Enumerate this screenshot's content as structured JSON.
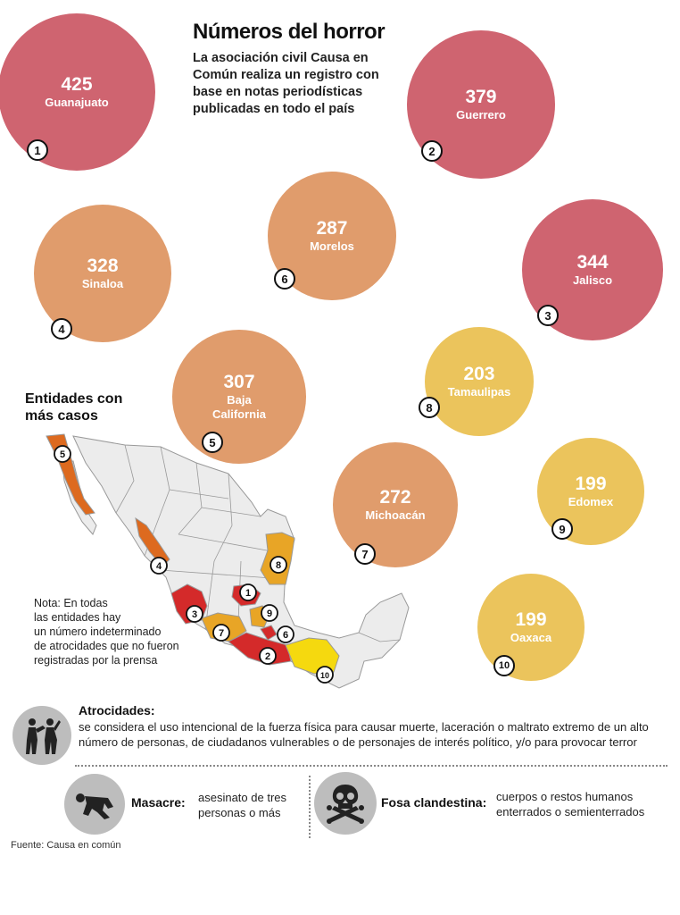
{
  "header": {
    "title": "Números del horror",
    "subtitle": "La asociación civil  Causa en Común realiza un registro con base en notas periodísticas publicadas en  todo el país"
  },
  "chart_data": {
    "type": "bubble",
    "title": "Números del horror",
    "colors": {
      "tier_high": "#cf6470",
      "tier_mid": "#e09c6c",
      "tier_low": "#ebc45c"
    },
    "series": [
      {
        "rank": "1",
        "state": "Guanajuato",
        "value": 425,
        "tier": "tier_high"
      },
      {
        "rank": "2",
        "state": "Guerrero",
        "value": 379,
        "tier": "tier_high"
      },
      {
        "rank": "3",
        "state": "Jalisco",
        "value": 344,
        "tier": "tier_high"
      },
      {
        "rank": "4",
        "state": "Sinaloa",
        "value": 328,
        "tier": "tier_mid"
      },
      {
        "rank": "5",
        "state": "Baja\nCalifornia",
        "value": 307,
        "tier": "tier_mid"
      },
      {
        "rank": "6",
        "state": "Morelos",
        "value": 287,
        "tier": "tier_mid"
      },
      {
        "rank": "7",
        "state": "Michoacán",
        "value": 272,
        "tier": "tier_mid"
      },
      {
        "rank": "8",
        "state": "Tamaulipas",
        "value": 203,
        "tier": "tier_low"
      },
      {
        "rank": "9",
        "state": "Edomex",
        "value": 199,
        "tier": "tier_low"
      },
      {
        "rank": "10",
        "state": "Oaxaca",
        "value": 199,
        "tier": "tier_low"
      }
    ]
  },
  "map": {
    "title": "Entidades con\nmás casos",
    "colors": {
      "base": "#ececec",
      "outline": "#999999",
      "red": "#d42a2a",
      "orange": "#dd6a1f",
      "amber": "#e8a526",
      "yellow": "#f5d90f"
    }
  },
  "note": "Nota: En todas\nlas entidades hay\nun número indeterminado\nde atrocidades que no fueron\nregistradas por la prensa",
  "definitions": {
    "atrocities": {
      "icon": "fighting-people-icon",
      "title": "Atrocidades:",
      "text": "se considera el uso intencional de la fuerza física para causar muerte, laceración o maltrato extremo de un alto número de personas, de ciudadanos vulnerables o de personajes de interés político, y/o para provocar terror"
    },
    "massacre": {
      "icon": "fallen-body-icon",
      "title": "Masacre:",
      "text": "asesinato de tres\npersonas o más"
    },
    "grave": {
      "icon": "skull-crossbones-icon",
      "title": "Fosa clandestina:",
      "text": "cuerpos o restos humanos\nenterrados o semienterrados"
    }
  },
  "source": "Fuente: Causa en común"
}
